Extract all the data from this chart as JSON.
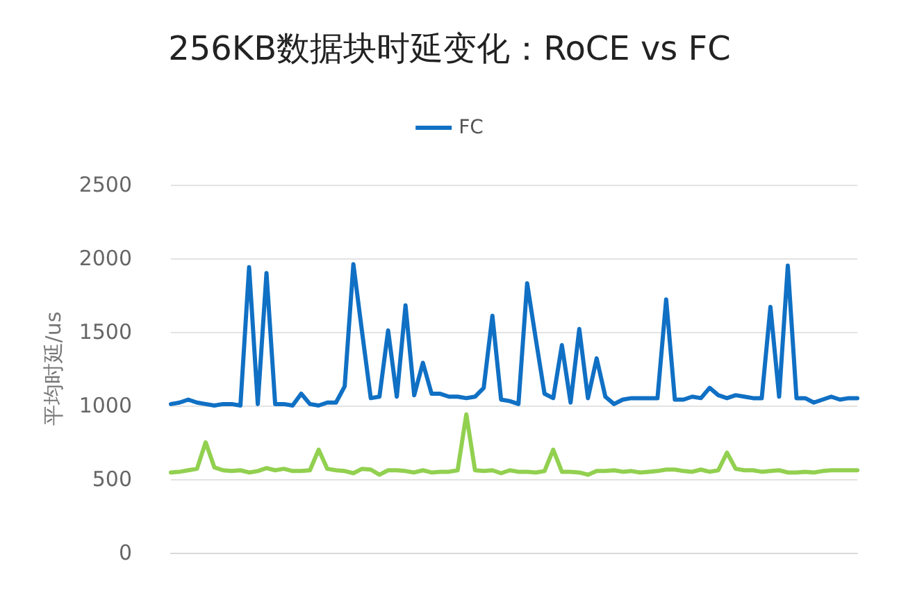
{
  "chart_data": {
    "type": "line",
    "title": "256KB数据块时延变化：RoCE vs FC",
    "ylabel": "平均时延/us",
    "categories": [
      null,
      null,
      null,
      null,
      null,
      null,
      null,
      null,
      null,
      null,
      null,
      null,
      null,
      null,
      null,
      null,
      null,
      null,
      null,
      null,
      null,
      null,
      null,
      null,
      null,
      null,
      null,
      null,
      null,
      null,
      null,
      null,
      null,
      null,
      null,
      null,
      null,
      null,
      null,
      null,
      null,
      null,
      null,
      null,
      null,
      null,
      null,
      null,
      null,
      null,
      null,
      null,
      null,
      null,
      null,
      null,
      null,
      null,
      null,
      null,
      null,
      null,
      null,
      null,
      null,
      null,
      null,
      null,
      null,
      null,
      null,
      null,
      null,
      null,
      null,
      null,
      null,
      null,
      null,
      null
    ],
    "series": [
      {
        "name": "FC",
        "color": "#1070c4",
        "values": [
          1010,
          1020,
          1040,
          1020,
          1010,
          1000,
          1010,
          1010,
          1000,
          1940,
          1010,
          1900,
          1010,
          1010,
          1000,
          1080,
          1010,
          1000,
          1020,
          1020,
          1130,
          1960,
          1500,
          1050,
          1060,
          1510,
          1060,
          1680,
          1070,
          1290,
          1080,
          1080,
          1060,
          1060,
          1050,
          1060,
          1120,
          1610,
          1040,
          1030,
          1010,
          1830,
          1450,
          1080,
          1050,
          1410,
          1020,
          1520,
          1050,
          1320,
          1060,
          1010,
          1040,
          1050,
          1050,
          1050,
          1050,
          1720,
          1040,
          1040,
          1060,
          1050,
          1120,
          1070,
          1050,
          1070,
          1060,
          1050,
          1050,
          1670,
          1060,
          1950,
          1050,
          1050,
          1020,
          1040,
          1060,
          1040,
          1050,
          1050
        ]
      },
      {
        "color": "#92d050",
        "values": [
          545,
          550,
          560,
          570,
          750,
          580,
          560,
          555,
          560,
          545,
          555,
          575,
          560,
          570,
          555,
          555,
          560,
          700,
          570,
          560,
          555,
          540,
          570,
          565,
          530,
          560,
          560,
          555,
          545,
          560,
          545,
          550,
          550,
          560,
          940,
          560,
          555,
          560,
          540,
          560,
          550,
          550,
          545,
          555,
          700,
          550,
          550,
          545,
          530,
          555,
          555,
          560,
          550,
          555,
          545,
          550,
          555,
          565,
          565,
          555,
          550,
          565,
          550,
          560,
          680,
          570,
          560,
          560,
          550,
          555,
          560,
          545,
          545,
          550,
          545,
          555,
          560,
          560,
          560,
          560
        ]
      }
    ],
    "ylim": [
      0,
      2500
    ],
    "yticks": [
      0,
      500,
      1000,
      1500,
      2000,
      2500
    ],
    "grid": "y",
    "legend": "top",
    "marker": "none",
    "line_style": "solid"
  }
}
